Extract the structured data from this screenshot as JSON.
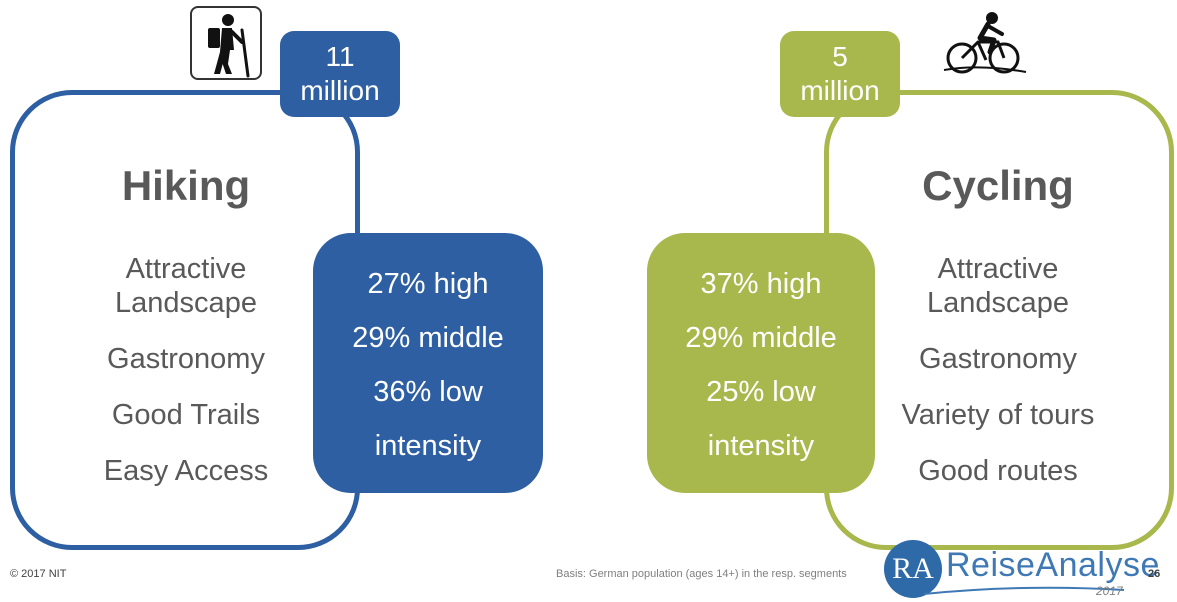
{
  "hiking": {
    "badge_number": "11",
    "badge_unit": "million",
    "title": "Hiking",
    "motives": [
      "Attractive",
      "Landscape",
      "Gastronomy",
      "Good Trails",
      "Easy Access"
    ],
    "intensity": [
      "27% high",
      "29% middle",
      "36% low",
      "intensity"
    ],
    "icon": "hiker-icon",
    "color": "#2e5fa3"
  },
  "cycling": {
    "badge_number": "5",
    "badge_unit": "million",
    "title": "Cycling",
    "motives": [
      "Attractive",
      "Landscape",
      "Gastronomy",
      "Variety of tours",
      "Good routes"
    ],
    "intensity": [
      "37% high",
      "29% middle",
      "25% low",
      "intensity"
    ],
    "icon": "cyclist-icon",
    "color": "#a9b84c"
  },
  "footer": {
    "copyright": "© 2017 NIT",
    "basis": "Basis: German population (ages 14+) in the resp. segments",
    "page_number": "26"
  },
  "logo": {
    "mark": "RA",
    "name": "ReiseAnalyse",
    "year": "2017"
  }
}
